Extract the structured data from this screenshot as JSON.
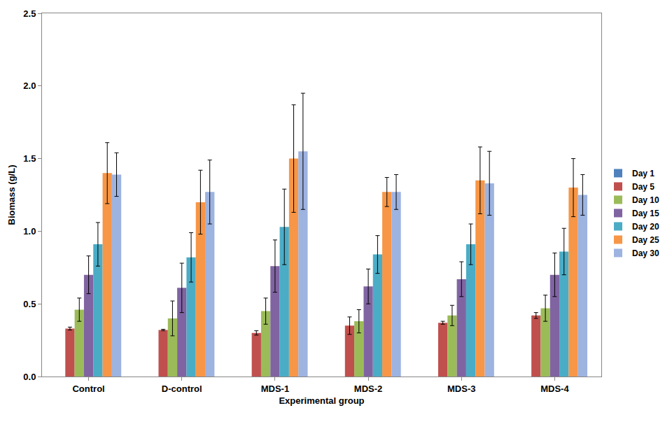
{
  "chart_data": {
    "type": "bar",
    "x_label": "Experimental group",
    "y_label": "Biomass (g/L)",
    "categories": [
      "Control",
      "D-control",
      "MDS-1",
      "MDS-2",
      "MDS-3",
      "MDS-4"
    ],
    "series": [
      {
        "name": "Day 1",
        "color": "#4F81BD",
        "values": [
          0,
          0,
          0,
          0,
          0,
          0
        ]
      },
      {
        "name": "Day 5",
        "color": "#C0504D",
        "values": [
          0.33,
          0.32,
          0.3,
          0.35,
          0.37,
          0.42
        ],
        "errors": [
          0.01,
          0.005,
          0.015,
          0.06,
          0.01,
          0.02
        ]
      },
      {
        "name": "Day 10",
        "color": "#9BBB59",
        "values": [
          0.46,
          0.4,
          0.45,
          0.38,
          0.42,
          0.47
        ],
        "errors": [
          0.08,
          0.12,
          0.09,
          0.08,
          0.07,
          0.09
        ]
      },
      {
        "name": "Day 15",
        "color": "#8064A2",
        "values": [
          0.7,
          0.61,
          0.76,
          0.62,
          0.67,
          0.7
        ],
        "errors": [
          0.13,
          0.17,
          0.18,
          0.12,
          0.12,
          0.15
        ]
      },
      {
        "name": "Day 20",
        "color": "#4BACC6",
        "values": [
          0.91,
          0.82,
          1.03,
          0.84,
          0.91,
          0.86
        ],
        "errors": [
          0.15,
          0.17,
          0.26,
          0.13,
          0.14,
          0.16
        ]
      },
      {
        "name": "Day 25",
        "color": "#F79646",
        "values": [
          1.4,
          1.2,
          1.5,
          1.27,
          1.35,
          1.3
        ],
        "errors": [
          0.21,
          0.22,
          0.37,
          0.1,
          0.23,
          0.2
        ]
      },
      {
        "name": "Day 30",
        "color": "#9DB3E0",
        "values": [
          1.39,
          1.27,
          1.55,
          1.27,
          1.33,
          1.25
        ],
        "errors": [
          0.15,
          0.22,
          0.4,
          0.12,
          0.22,
          0.14
        ]
      }
    ],
    "ylim": [
      0,
      2.5
    ],
    "yticks": [
      {
        "value": 0,
        "label": "0.0"
      },
      {
        "value": 0.5,
        "label": "0.5"
      },
      {
        "value": 1,
        "label": "1.0"
      },
      {
        "value": 1.5,
        "label": "1.5"
      },
      {
        "value": 2,
        "label": "2.0"
      },
      {
        "value": 2.5,
        "label": "2.5"
      }
    ],
    "grid": false,
    "legend": "right"
  }
}
